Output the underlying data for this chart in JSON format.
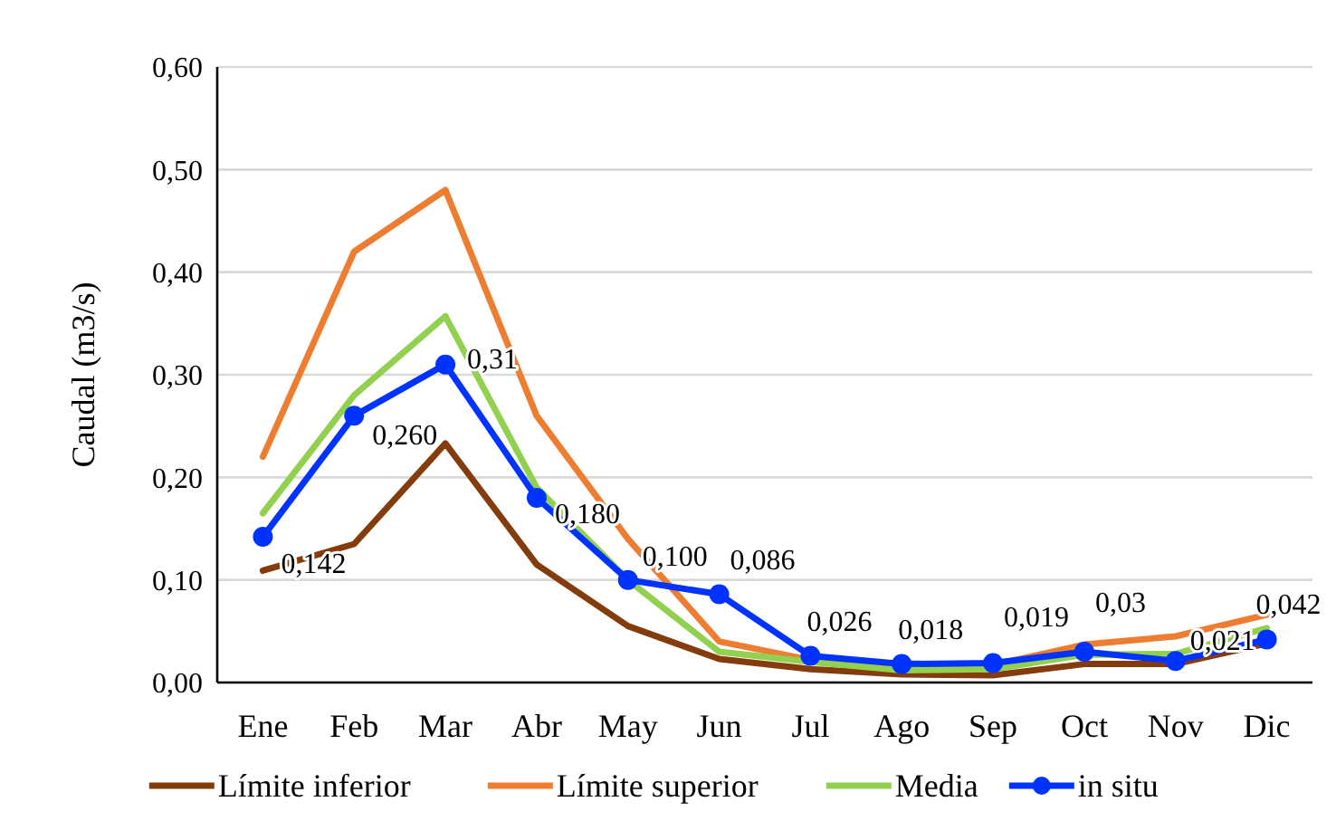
{
  "chart_data": {
    "type": "line",
    "ylabel": "Caudal (m3/s)",
    "categories": [
      "Ene",
      "Feb",
      "Mar",
      "Abr",
      "May",
      "Jun",
      "Jul",
      "Ago",
      "Sep",
      "Oct",
      "Nov",
      "Dic"
    ],
    "ylim": [
      0,
      0.6
    ],
    "yticks": [
      {
        "value": 0,
        "label": "0,00"
      },
      {
        "value": 0.1,
        "label": "0,10"
      },
      {
        "value": 0.2,
        "label": "0,20"
      },
      {
        "value": 0.3,
        "label": "0,30"
      },
      {
        "value": 0.4,
        "label": "0,40"
      },
      {
        "value": 0.5,
        "label": "0,50"
      },
      {
        "value": 0.6,
        "label": "0,60"
      }
    ],
    "grid": "y",
    "legend": "bottom",
    "series": [
      {
        "name": "Límite inferior",
        "color": "#843c0c",
        "marker": "none",
        "values": [
          0.109,
          0.135,
          0.233,
          0.115,
          0.055,
          0.023,
          0.013,
          0.008,
          0.007,
          0.018,
          0.018,
          0.038
        ]
      },
      {
        "name": "Límite superior",
        "color": "#ed7d31",
        "marker": "none",
        "values": [
          0.22,
          0.42,
          0.48,
          0.26,
          0.14,
          0.04,
          0.022,
          0.015,
          0.017,
          0.037,
          0.045,
          0.066
        ]
      },
      {
        "name": "Media",
        "color": "#92d050",
        "marker": "none",
        "values": [
          0.165,
          0.28,
          0.357,
          0.19,
          0.1,
          0.03,
          0.02,
          0.012,
          0.013,
          0.027,
          0.028,
          0.053
        ]
      },
      {
        "name": "in situ",
        "color": "#0033ff",
        "marker": "circle",
        "values": [
          0.142,
          0.26,
          0.31,
          0.18,
          0.1,
          0.086,
          0.026,
          0.018,
          0.019,
          0.03,
          0.021,
          0.042
        ],
        "value_labels": [
          "0,142",
          "0,260",
          "0,31",
          "0,180",
          "0,100",
          "0,086",
          "0,026",
          "0,018",
          "0,019",
          "0,03",
          "0,021",
          "0,042"
        ]
      }
    ]
  }
}
